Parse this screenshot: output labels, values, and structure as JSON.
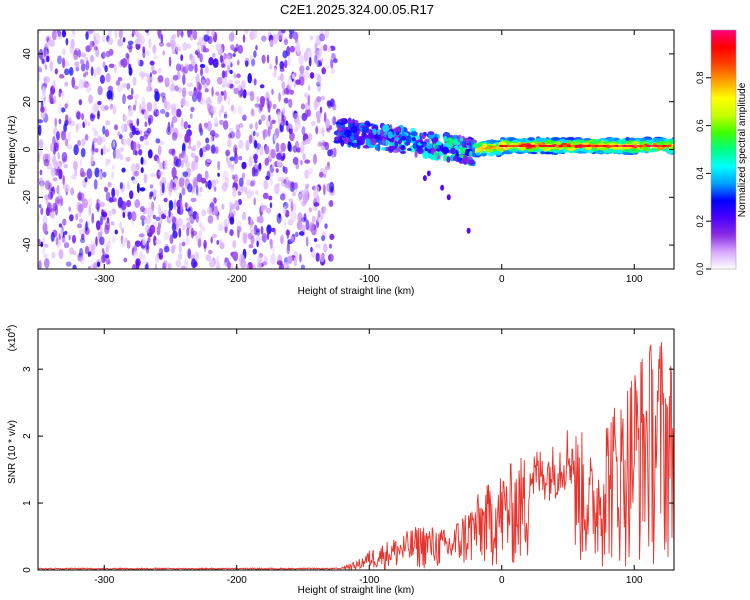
{
  "title": "C2E1.2025.324.00.05.R17",
  "chart_data": [
    {
      "type": "heatmap",
      "xlabel": "Height of straight line (km)",
      "ylabel": "Frequency (Hz)",
      "xlim": [
        -350,
        130
      ],
      "ylim": [
        -50,
        50
      ],
      "xticks": [
        -300,
        -200,
        -100,
        0,
        100
      ],
      "yticks": [
        -40,
        -20,
        0,
        20,
        40
      ],
      "colorbar": {
        "label": "Normalized spectral amplitude",
        "range": [
          0,
          1
        ],
        "ticks": [
          "0.0",
          "0.2",
          "0.4",
          "0.6",
          "0.8"
        ],
        "colors": [
          "#ffffff",
          "#d6a8ff",
          "#8a2be2",
          "#4b00ff",
          "#0000ff",
          "#00a0ff",
          "#00ffff",
          "#00ff80",
          "#40ff00",
          "#c8ff00",
          "#ffff00",
          "#ffa000",
          "#ff4000",
          "#ff0000",
          "#ff0080"
        ]
      },
      "description_regions": [
        {
          "name": "noise",
          "x_range": [
            -350,
            -125
          ],
          "freq_range": [
            -50,
            50
          ],
          "amplitude": "0.05-0.25"
        },
        {
          "name": "transition",
          "x_range": [
            -125,
            -20
          ],
          "freq_center": [
            8,
            -2
          ],
          "amplitude": "0.2-0.6"
        },
        {
          "name": "signal",
          "x_range": [
            -20,
            130
          ],
          "freq_center": 1,
          "amplitude": "0.5-1.0"
        }
      ]
    },
    {
      "type": "line",
      "xlabel": "Height of straight line (km)",
      "ylabel": "SNR (10 * v/v)",
      "y_multiplier": "(x10",
      "y_multiplier_exp": "4",
      "xlim": [
        -350,
        130
      ],
      "ylim": [
        0,
        3.6
      ],
      "xticks": [
        -300,
        -200,
        -100,
        0,
        100
      ],
      "yticks": [
        0,
        1,
        2,
        3
      ],
      "color": "#e8322b",
      "envelope": {
        "x": [
          -350,
          -130,
          -110,
          -100,
          -80,
          -60,
          -40,
          -20,
          0,
          20,
          40,
          50,
          60,
          70,
          80,
          90,
          100,
          110,
          120,
          130
        ],
        "y": [
          0.02,
          0.03,
          0.12,
          0.3,
          0.5,
          0.7,
          0.6,
          1.1,
          1.5,
          1.8,
          1.9,
          2.2,
          2.1,
          1.6,
          2.5,
          2.6,
          3.2,
          3.4,
          3.6,
          3.1
        ]
      }
    }
  ]
}
